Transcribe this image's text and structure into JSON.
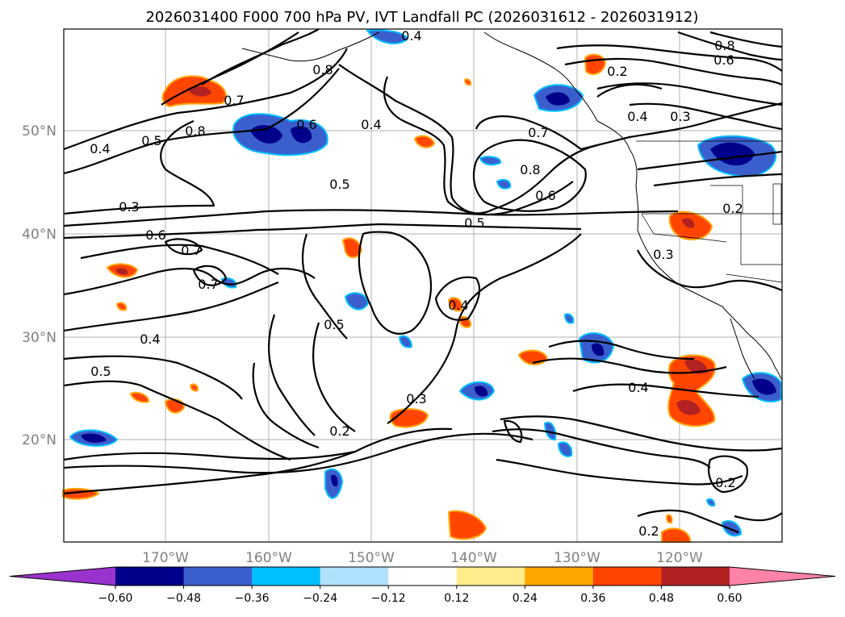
{
  "title": "2026031400 F000 700 hPa PV, IVT Landfall PC (2026031612 - 2026031912)",
  "lat_labels": [
    "50°N",
    "40°N",
    "30°N",
    "20°N"
  ],
  "lon_labels": [
    "170°W",
    "160°W",
    "150°W",
    "140°W",
    "130°W",
    "120°W"
  ],
  "contour_labels": [
    "0.8",
    "0.6",
    "0.4",
    "0.8",
    "0.2",
    "0.7",
    "0.4",
    "0.3",
    "0.8",
    "0.6",
    "0.5",
    "0.4",
    "0.4",
    "0.5",
    "0.7",
    "0.8",
    "0.6",
    "0.3",
    "0.5",
    "0.6",
    "0.7",
    "0.7",
    "0.2",
    "0.3",
    "0.5",
    "0.4",
    "0.5",
    "0.4",
    "0.3",
    "0.2",
    "0.4",
    "0.2",
    "0.2"
  ],
  "colorbar": {
    "ticks": [
      "−0.60",
      "−0.48",
      "−0.36",
      "−0.24",
      "−0.12",
      "0.12",
      "0.24",
      "0.36",
      "0.48",
      "0.60"
    ],
    "colors": [
      "#9a32cd",
      "#00008b",
      "#3a5fcd",
      "#00bfff",
      "#b0e2ff",
      "#ffffff",
      "#ffec8b",
      "#ffa500",
      "#ff4500",
      "#b22222",
      "#ff83a8"
    ]
  }
}
